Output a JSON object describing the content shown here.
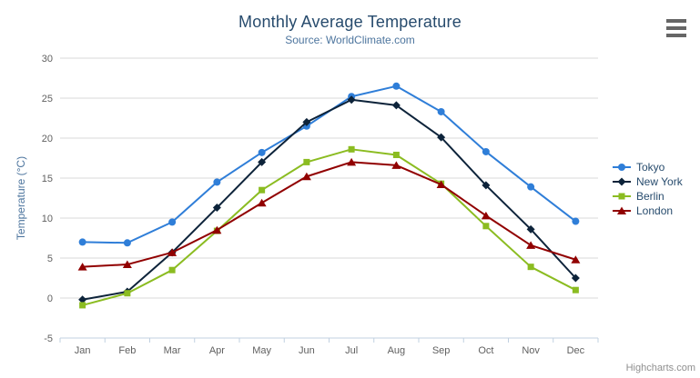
{
  "header": {
    "title": "Monthly Average Temperature",
    "subtitle": "Source: WorldClimate.com"
  },
  "context_menu": {
    "icon": "hamburger-icon",
    "tooltip": "Chart context menu"
  },
  "credits": {
    "label": "Highcharts.com"
  },
  "colors": {
    "title": "#274b6d",
    "subtitle": "#4d759e",
    "axis_title": "#4d759e",
    "axis_labels": "#606060",
    "grid_line": "#d8d8d8",
    "axis_line": "#c0d0e0",
    "legend_text": "#274b6d",
    "credits_text": "#8f8f8f",
    "menu_icon": "#666666"
  },
  "chart_data": {
    "type": "line",
    "title": "Monthly Average Temperature",
    "subtitle": "Source: WorldClimate.com",
    "categories": [
      "Jan",
      "Feb",
      "Mar",
      "Apr",
      "May",
      "Jun",
      "Jul",
      "Aug",
      "Sep",
      "Oct",
      "Nov",
      "Dec"
    ],
    "series": [
      {
        "name": "Tokyo",
        "color": "#2f7ed8",
        "marker": "circle",
        "values": [
          7.0,
          6.9,
          9.5,
          14.5,
          18.2,
          21.5,
          25.2,
          26.5,
          23.3,
          18.3,
          13.9,
          9.6
        ]
      },
      {
        "name": "New York",
        "color": "#0d233a",
        "marker": "diamond",
        "values": [
          -0.2,
          0.8,
          5.7,
          11.3,
          17.0,
          22.0,
          24.8,
          24.1,
          20.1,
          14.1,
          8.6,
          2.5
        ]
      },
      {
        "name": "Berlin",
        "color": "#8bbc21",
        "marker": "square",
        "values": [
          -0.9,
          0.6,
          3.5,
          8.4,
          13.5,
          17.0,
          18.6,
          17.9,
          14.3,
          9.0,
          3.9,
          1.0
        ]
      },
      {
        "name": "London",
        "color": "#910000",
        "marker": "triangle",
        "values": [
          3.9,
          4.2,
          5.7,
          8.5,
          11.9,
          15.2,
          17.0,
          16.6,
          14.2,
          10.3,
          6.6,
          4.8
        ]
      }
    ],
    "xlabel": "",
    "ylabel": "Temperature (°C)",
    "ylim": [
      -5,
      30
    ],
    "yticks": [
      -5,
      0,
      5,
      10,
      15,
      20,
      25,
      30
    ],
    "grid": "horizontal",
    "legend_position": "right"
  }
}
